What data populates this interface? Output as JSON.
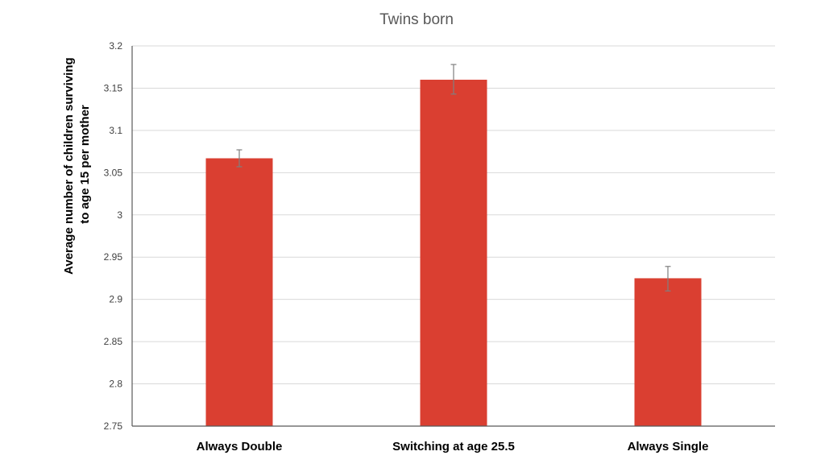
{
  "chart_data": {
    "type": "bar",
    "title": "Twins born",
    "xlabel": "",
    "ylabel_lines": [
      "Average number of children surviving",
      "to age 15 per mother"
    ],
    "categories": [
      "Always Double",
      "Switching at age 25.5",
      "Always Single"
    ],
    "values": [
      3.067,
      3.16,
      2.925
    ],
    "error_low": [
      3.057,
      3.143,
      2.91
    ],
    "error_high": [
      3.077,
      3.178,
      2.939
    ],
    "ylim": [
      2.75,
      3.2
    ],
    "yticks": [
      2.75,
      2.8,
      2.85,
      2.9,
      2.95,
      3,
      3.05,
      3.1,
      3.15,
      3.2
    ],
    "ytick_labels": [
      "2.75",
      "2.8",
      "2.85",
      "2.9",
      "2.95",
      "3",
      "3.05",
      "3.1",
      "3.15",
      "3.2"
    ],
    "grid": true,
    "legend": "none",
    "bar_color": "#da3f31",
    "error_bar_color": "#7f7f7f"
  }
}
